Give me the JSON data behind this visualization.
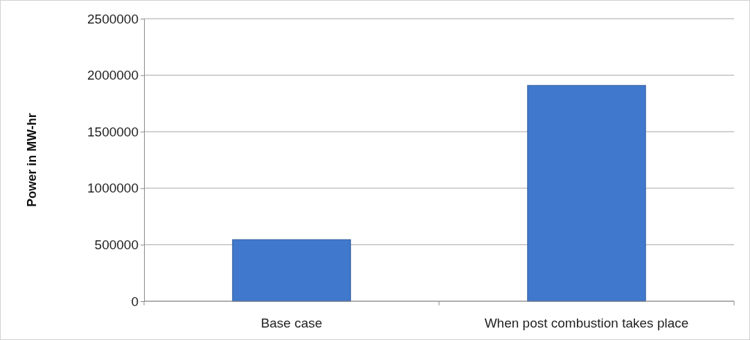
{
  "chart_data": {
    "type": "bar",
    "ylabel": "Power in MW-hr",
    "categories": [
      "Base case",
      "When post combustion takes place"
    ],
    "values": [
      545000,
      1910000
    ],
    "color": "#3f78cc",
    "ylim": [
      0,
      2500000
    ],
    "yticks": [
      0,
      500000,
      1000000,
      1500000,
      2000000,
      2500000
    ],
    "grid": "y"
  }
}
